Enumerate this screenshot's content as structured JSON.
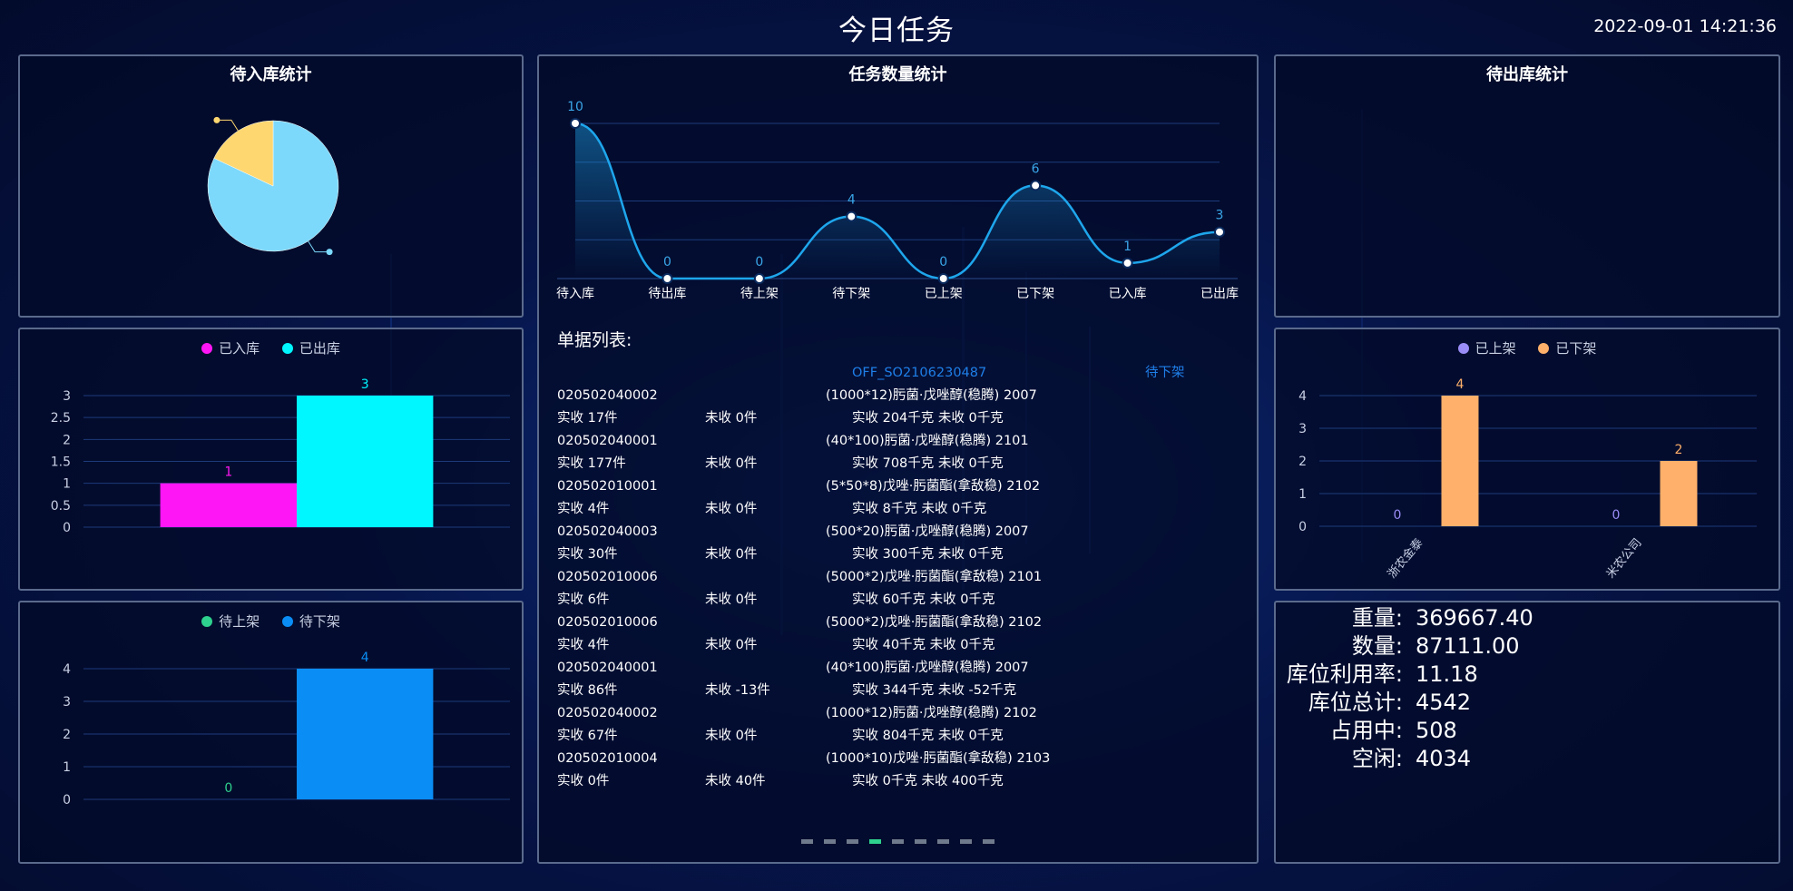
{
  "header": {
    "title": "今日任务",
    "datetime": "2022-09-01 14:21:36"
  },
  "panels": {
    "inbound_title": "待入库统计",
    "task_title": "任务数量统计",
    "outbound_title": "待出库统计"
  },
  "colors": {
    "pie_big": "#7dd9fb",
    "pie_small": "#ffd770",
    "line": "#1ea6ec",
    "magenta": "#ff16f4",
    "cyan": "#00f7ff",
    "green": "#2ed18d",
    "blue": "#0a8df5",
    "purple": "#9a8df7",
    "orange": "#ffb06a"
  },
  "chart_data": [
    {
      "id": "inbound_pie",
      "type": "pie",
      "title": "待入库统计",
      "slices": [
        {
          "value": 82,
          "color": "#7dd9fb"
        },
        {
          "value": 18,
          "color": "#ffd770"
        }
      ]
    },
    {
      "id": "task_line",
      "type": "line",
      "title": "任务数量统计",
      "categories": [
        "待入库",
        "待出库",
        "待上架",
        "待下架",
        "已上架",
        "已下架",
        "已入库",
        "已出库"
      ],
      "values": [
        10,
        0,
        0,
        4,
        0,
        6,
        1,
        3
      ],
      "ylim": [
        0,
        10
      ]
    },
    {
      "id": "in_out_bar",
      "type": "bar",
      "legend": [
        "已入库",
        "已出库"
      ],
      "series": [
        {
          "name": "已入库",
          "values": [
            1
          ],
          "color": "#ff16f4"
        },
        {
          "name": "已出库",
          "values": [
            3
          ],
          "color": "#00f7ff"
        }
      ],
      "yticks": [
        "0",
        "0.5",
        "1",
        "1.5",
        "2",
        "2.5",
        "3"
      ],
      "ylim": [
        0,
        3
      ]
    },
    {
      "id": "shelf_bar",
      "type": "bar",
      "legend": [
        "待上架",
        "待下架"
      ],
      "series": [
        {
          "name": "待上架",
          "values": [
            0
          ],
          "color": "#2ed18d"
        },
        {
          "name": "待下架",
          "values": [
            4
          ],
          "color": "#0a8df5"
        }
      ],
      "yticks": [
        "0",
        "1",
        "2",
        "3",
        "4"
      ],
      "ylim": [
        0,
        4
      ]
    },
    {
      "id": "company_bar",
      "type": "bar",
      "legend": [
        "已上架",
        "已下架"
      ],
      "categories": [
        "浙农金泰",
        "米农公司"
      ],
      "series": [
        {
          "name": "已上架",
          "values": [
            0,
            0
          ],
          "color": "#9a8df7"
        },
        {
          "name": "已下架",
          "values": [
            4,
            2
          ],
          "color": "#ffb06a"
        }
      ],
      "yticks": [
        "0",
        "1",
        "2",
        "3",
        "4"
      ],
      "ylim": [
        0,
        4
      ]
    }
  ],
  "doc_list": {
    "heading": "单据列表:",
    "header_row": {
      "order": "OFF_SO2106230487",
      "status": "待下架"
    },
    "items": [
      {
        "code": "020502040002",
        "product": "(1000*12)肟菌·戊唑醇(稳腾) 2007",
        "recv": "实收 17件",
        "unrecv": "未收 0件",
        "weight": "实收 204千克 未收 0千克"
      },
      {
        "code": "020502040001",
        "product": "(40*100)肟菌·戊唑醇(稳腾) 2101",
        "recv": "实收 177件",
        "unrecv": "未收 0件",
        "weight": "实收 708千克 未收 0千克"
      },
      {
        "code": "020502010001",
        "product": "(5*50*8)戊唑·肟菌酯(拿敌稳) 2102",
        "recv": "实收 4件",
        "unrecv": "未收 0件",
        "weight": "实收 8千克 未收 0千克"
      },
      {
        "code": "020502040003",
        "product": "(500*20)肟菌·戊唑醇(稳腾) 2007",
        "recv": "实收 30件",
        "unrecv": "未收 0件",
        "weight": "实收 300千克 未收 0千克"
      },
      {
        "code": "020502010006",
        "product": "(5000*2)戊唑·肟菌酯(拿敌稳) 2101",
        "recv": "实收 6件",
        "unrecv": "未收 0件",
        "weight": "实收 60千克 未收 0千克"
      },
      {
        "code": "020502010006",
        "product": "(5000*2)戊唑·肟菌酯(拿敌稳) 2102",
        "recv": "实收 4件",
        "unrecv": "未收 0件",
        "weight": "实收 40千克 未收 0千克"
      },
      {
        "code": "020502040001",
        "product": "(40*100)肟菌·戊唑醇(稳腾) 2007",
        "recv": "实收 86件",
        "unrecv": "未收 -13件",
        "weight": "实收 344千克 未收 -52千克"
      },
      {
        "code": "020502040002",
        "product": "(1000*12)肟菌·戊唑醇(稳腾) 2102",
        "recv": "实收 67件",
        "unrecv": "未收 0件",
        "weight": "实收 804千克 未收 0千克"
      },
      {
        "code": "020502010004",
        "product": "(1000*10)戊唑·肟菌酯(拿敌稳) 2103",
        "recv": "实收 0件",
        "unrecv": "未收 40件",
        "weight": "实收 0千克 未收 400千克"
      }
    ],
    "pages": 9,
    "active_page": 4
  },
  "stats": [
    {
      "label": "重量:",
      "value": "369667.40"
    },
    {
      "label": "数量:",
      "value": "87111.00"
    },
    {
      "label": "库位利用率:",
      "value": "11.18"
    },
    {
      "label": "库位总计:",
      "value": "4542"
    },
    {
      "label": "占用中:",
      "value": "508"
    },
    {
      "label": "空闲:",
      "value": "4034"
    }
  ]
}
